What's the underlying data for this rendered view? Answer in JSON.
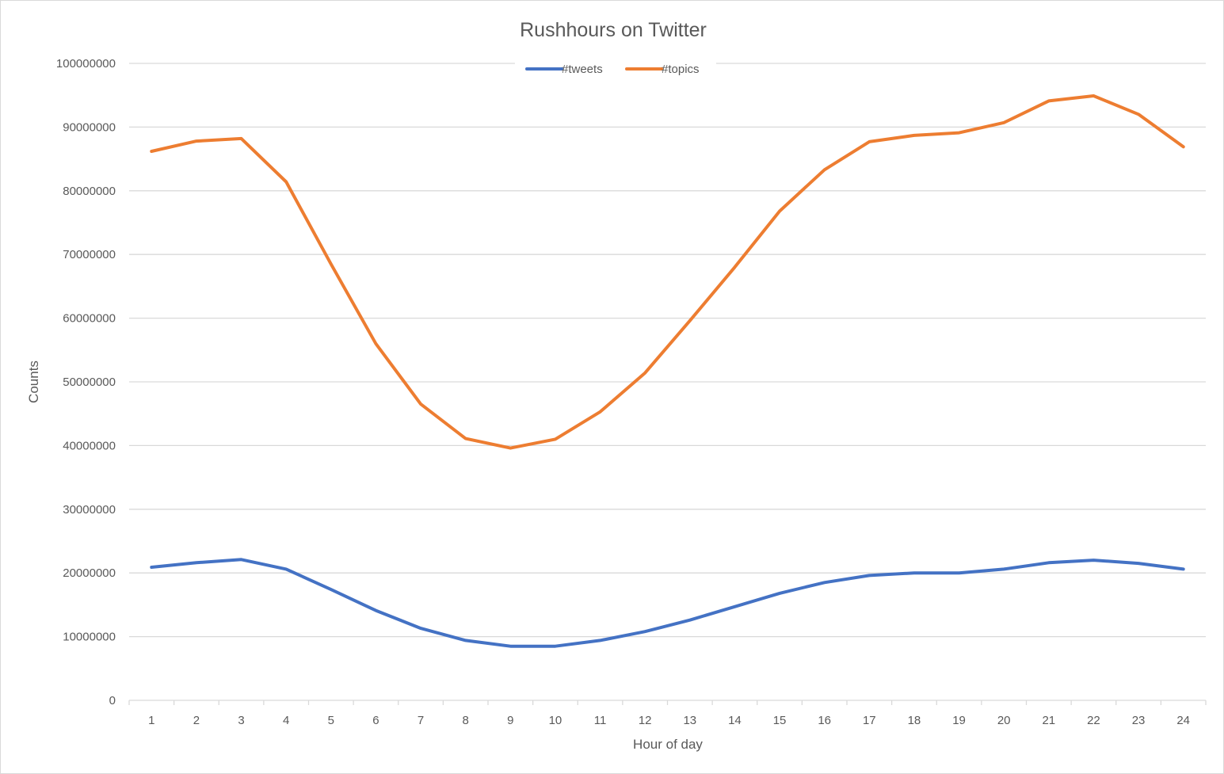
{
  "chart_data": {
    "type": "line",
    "title": "Rushhours on Twitter",
    "xlabel": "Hour of day",
    "ylabel": "Counts",
    "ylim": [
      0,
      100000000
    ],
    "y_ticks": [
      "0",
      "10000000",
      "20000000",
      "30000000",
      "40000000",
      "50000000",
      "60000000",
      "70000000",
      "80000000",
      "90000000",
      "100000000"
    ],
    "categories": [
      "1",
      "2",
      "3",
      "4",
      "5",
      "6",
      "7",
      "8",
      "9",
      "10",
      "11",
      "12",
      "13",
      "14",
      "15",
      "16",
      "17",
      "18",
      "19",
      "20",
      "21",
      "22",
      "23",
      "24"
    ],
    "grid": "horizontal",
    "legend_position": "top-center",
    "series": [
      {
        "name": "#tweets",
        "color": "#4472c4",
        "values": [
          20900000,
          21600000,
          22100000,
          20600000,
          17400000,
          14100000,
          11300000,
          9400000,
          8500000,
          8500000,
          9400000,
          10800000,
          12600000,
          14700000,
          16800000,
          18500000,
          19600000,
          20000000,
          20000000,
          20600000,
          21600000,
          22000000,
          21500000,
          20600000
        ]
      },
      {
        "name": "#topics",
        "color": "#ed7d31",
        "values": [
          86200000,
          87800000,
          88200000,
          81400000,
          68500000,
          56000000,
          46500000,
          41100000,
          39600000,
          41000000,
          45300000,
          51400000,
          59600000,
          68000000,
          76800000,
          83300000,
          87700000,
          88700000,
          89100000,
          90700000,
          94100000,
          94900000,
          92000000,
          86900000
        ]
      }
    ]
  }
}
